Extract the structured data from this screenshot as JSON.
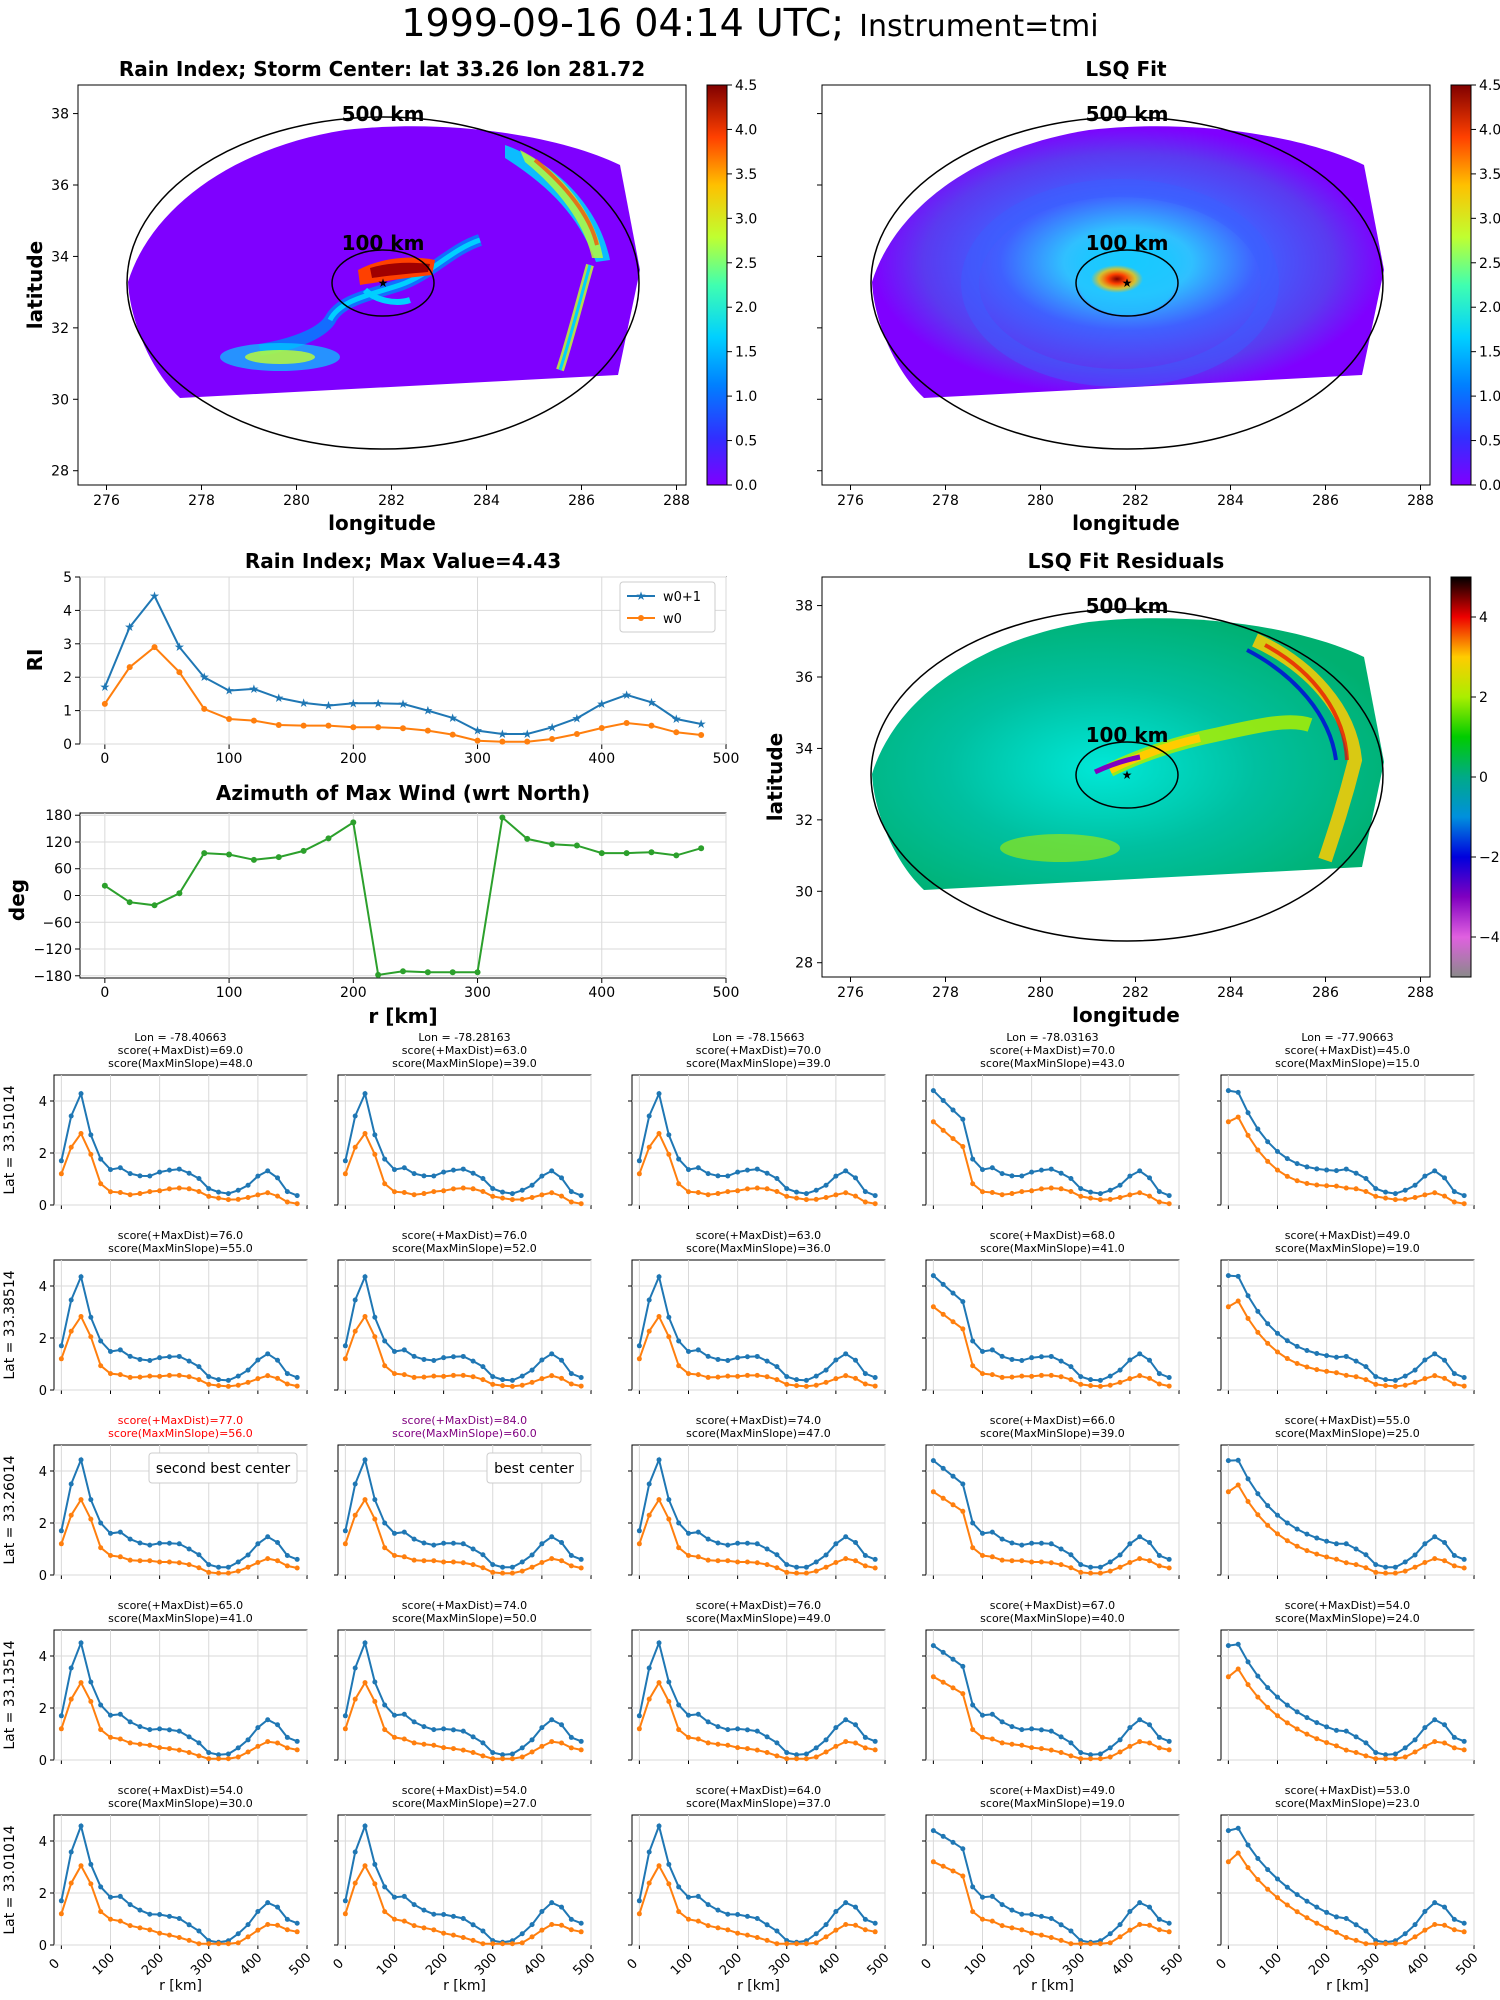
{
  "figure": {
    "title_time": "1999-09-16 04:14 UTC;",
    "title_instrument": "Instrument=tmi"
  },
  "colors": {
    "w0p1": "#1f77b4",
    "w0": "#ff7f0e",
    "azimuth": "#2ca02c",
    "grid": "#d9d9d9",
    "red": "#ff0000",
    "purple": "#800080"
  },
  "chart_data": [
    {
      "id": "rain_index_map",
      "type": "heatmap",
      "title": "Rain Index; Storm Center: lat 33.26 lon 281.72",
      "xlabel": "longitude",
      "ylabel": "latitude",
      "xticks": [
        "276",
        "278",
        "280",
        "282",
        "284",
        "286",
        "288"
      ],
      "yticks": [
        "28",
        "30",
        "32",
        "34",
        "36",
        "38"
      ],
      "xlim": [
        275.4,
        288.2
      ],
      "ylim": [
        27.6,
        38.8
      ],
      "colorbar": {
        "min": 0.0,
        "max": 4.5,
        "ticks": [
          "0.0",
          "0.5",
          "1.0",
          "1.5",
          "2.0",
          "2.5",
          "3.0",
          "3.5",
          "4.0",
          "4.5"
        ],
        "colormap": "jet"
      },
      "annotations": [
        "500 km",
        "100 km"
      ],
      "storm_center": {
        "lat": 33.26,
        "lon": 281.72
      }
    },
    {
      "id": "lsq_fit_map",
      "type": "heatmap",
      "title": "LSQ Fit",
      "xlabel": "longitude",
      "xticks": [
        "276",
        "278",
        "280",
        "282",
        "284",
        "286",
        "288"
      ],
      "xlim": [
        275.4,
        288.2
      ],
      "ylim": [
        27.6,
        38.8
      ],
      "colorbar": {
        "min": 0.0,
        "max": 4.5,
        "ticks": [
          "0.0",
          "0.5",
          "1.0",
          "1.5",
          "2.0",
          "2.5",
          "3.0",
          "3.5",
          "4.0",
          "4.5"
        ],
        "colormap": "jet"
      },
      "annotations": [
        "500 km",
        "100 km"
      ]
    },
    {
      "id": "rain_index_profile",
      "type": "line",
      "title": "Rain Index; Max Value=4.43",
      "ylabel": "RI",
      "x": [
        0,
        20,
        40,
        60,
        80,
        100,
        120,
        140,
        160,
        180,
        200,
        220,
        240,
        260,
        280,
        300,
        320,
        340,
        360,
        380,
        400,
        420,
        440,
        460,
        480
      ],
      "xticks": [
        "0",
        "100",
        "200",
        "300",
        "400",
        "500"
      ],
      "yticks": [
        "0",
        "1",
        "2",
        "3",
        "4",
        "5"
      ],
      "xlim": [
        -20,
        500
      ],
      "ylim": [
        0,
        5
      ],
      "legend": "top-right",
      "series": [
        {
          "name": "w0+1",
          "values": [
            1.7,
            3.5,
            4.43,
            2.9,
            2.0,
            1.6,
            1.65,
            1.38,
            1.23,
            1.15,
            1.22,
            1.22,
            1.2,
            1.0,
            0.78,
            0.4,
            0.3,
            0.3,
            0.5,
            0.77,
            1.2,
            1.47,
            1.25,
            0.75,
            0.6
          ]
        },
        {
          "name": "w0",
          "values": [
            1.2,
            2.3,
            2.9,
            2.15,
            1.05,
            0.75,
            0.7,
            0.57,
            0.55,
            0.55,
            0.5,
            0.5,
            0.47,
            0.4,
            0.28,
            0.1,
            0.07,
            0.07,
            0.15,
            0.3,
            0.48,
            0.63,
            0.55,
            0.35,
            0.27
          ]
        }
      ]
    },
    {
      "id": "azimuth_max_wind",
      "type": "line",
      "title": "Azimuth of Max Wind (wrt North)",
      "xlabel": "r [km]",
      "ylabel": "deg",
      "x": [
        0,
        20,
        40,
        60,
        80,
        100,
        120,
        140,
        160,
        180,
        200,
        220,
        240,
        260,
        280,
        300,
        320,
        340,
        360,
        380,
        400,
        420,
        440,
        460,
        480
      ],
      "xticks": [
        "0",
        "100",
        "200",
        "300",
        "400",
        "500"
      ],
      "yticks": [
        "180",
        "120",
        "60",
        "0",
        "−60",
        "−120",
        "−180"
      ],
      "xlim": [
        -20,
        500
      ],
      "ylim": [
        -185,
        185
      ],
      "series": [
        {
          "values": [
            22,
            -15,
            -22,
            5,
            95,
            92,
            80,
            86,
            100,
            128,
            164,
            -178,
            -170,
            -172,
            -172,
            -172,
            175,
            127,
            115,
            112,
            95,
            95,
            97,
            90,
            106
          ]
        }
      ]
    },
    {
      "id": "lsq_residuals_map",
      "type": "heatmap",
      "title": "LSQ Fit Residuals",
      "xlabel": "longitude",
      "ylabel": "latitude",
      "xticks": [
        "276",
        "278",
        "280",
        "282",
        "284",
        "286",
        "288"
      ],
      "yticks": [
        "28",
        "30",
        "32",
        "34",
        "36",
        "38"
      ],
      "xlim": [
        275.4,
        288.2
      ],
      "ylim": [
        27.6,
        38.8
      ],
      "colorbar": {
        "min": -5,
        "max": 5,
        "ticks": [
          "4",
          "2",
          "0",
          "−2",
          "−4"
        ],
        "colormap": "nipy_spectral"
      },
      "annotations": [
        "500 km",
        "100 km"
      ]
    },
    {
      "id": "center_grid",
      "type": "line",
      "xlabel": "r [km]",
      "xticks": [
        "0",
        "100",
        "200",
        "300",
        "400",
        "500"
      ],
      "yticks": [
        "0",
        "2",
        "4"
      ],
      "xlim": [
        -15,
        500
      ],
      "ylim": [
        0,
        5
      ],
      "lon_labels": [
        "Lon = -78.40663",
        "Lon = -78.28163",
        "Lon = -78.15663",
        "Lon = -78.03163",
        "Lon = -77.90663"
      ],
      "lat_labels": [
        "Lat = 33.51014",
        "Lat = 33.38514",
        "Lat = 33.26014",
        "Lat = 33.13514",
        "Lat = 33.01014"
      ],
      "scores": [
        [
          [
            "score(+MaxDist)=69.0",
            "score(MaxMinSlope)=48.0"
          ],
          [
            "score(+MaxDist)=63.0",
            "score(MaxMinSlope)=39.0"
          ],
          [
            "score(+MaxDist)=70.0",
            "score(MaxMinSlope)=39.0"
          ],
          [
            "score(+MaxDist)=70.0",
            "score(MaxMinSlope)=43.0"
          ],
          [
            "score(+MaxDist)=45.0",
            "score(MaxMinSlope)=15.0"
          ]
        ],
        [
          [
            "score(+MaxDist)=76.0",
            "score(MaxMinSlope)=55.0"
          ],
          [
            "score(+MaxDist)=76.0",
            "score(MaxMinSlope)=52.0"
          ],
          [
            "score(+MaxDist)=63.0",
            "score(MaxMinSlope)=36.0"
          ],
          [
            "score(+MaxDist)=68.0",
            "score(MaxMinSlope)=41.0"
          ],
          [
            "score(+MaxDist)=49.0",
            "score(MaxMinSlope)=19.0"
          ]
        ],
        [
          [
            "score(+MaxDist)=77.0",
            "score(MaxMinSlope)=56.0"
          ],
          [
            "score(+MaxDist)=84.0",
            "score(MaxMinSlope)=60.0"
          ],
          [
            "score(+MaxDist)=74.0",
            "score(MaxMinSlope)=47.0"
          ],
          [
            "score(+MaxDist)=66.0",
            "score(MaxMinSlope)=39.0"
          ],
          [
            "score(+MaxDist)=55.0",
            "score(MaxMinSlope)=25.0"
          ]
        ],
        [
          [
            "score(+MaxDist)=65.0",
            "score(MaxMinSlope)=41.0"
          ],
          [
            "score(+MaxDist)=74.0",
            "score(MaxMinSlope)=50.0"
          ],
          [
            "score(+MaxDist)=76.0",
            "score(MaxMinSlope)=49.0"
          ],
          [
            "score(+MaxDist)=67.0",
            "score(MaxMinSlope)=40.0"
          ],
          [
            "score(+MaxDist)=54.0",
            "score(MaxMinSlope)=24.0"
          ]
        ],
        [
          [
            "score(+MaxDist)=54.0",
            "score(MaxMinSlope)=30.0"
          ],
          [
            "score(+MaxDist)=54.0",
            "score(MaxMinSlope)=27.0"
          ],
          [
            "score(+MaxDist)=64.0",
            "score(MaxMinSlope)=37.0"
          ],
          [
            "score(+MaxDist)=49.0",
            "score(MaxMinSlope)=19.0"
          ],
          [
            "score(+MaxDist)=53.0",
            "score(MaxMinSlope)=23.0"
          ]
        ]
      ],
      "score_colors": [
        [
          null,
          null,
          null,
          null,
          null
        ],
        [
          null,
          null,
          null,
          null,
          null
        ],
        [
          "red",
          "purple",
          null,
          null,
          null
        ],
        [
          null,
          null,
          null,
          null,
          null
        ],
        [
          null,
          null,
          null,
          null,
          null
        ]
      ],
      "legends": [
        {
          "row": 2,
          "col": 0,
          "text": "second best center"
        },
        {
          "row": 2,
          "col": 1,
          "text": "best center"
        }
      ]
    }
  ]
}
